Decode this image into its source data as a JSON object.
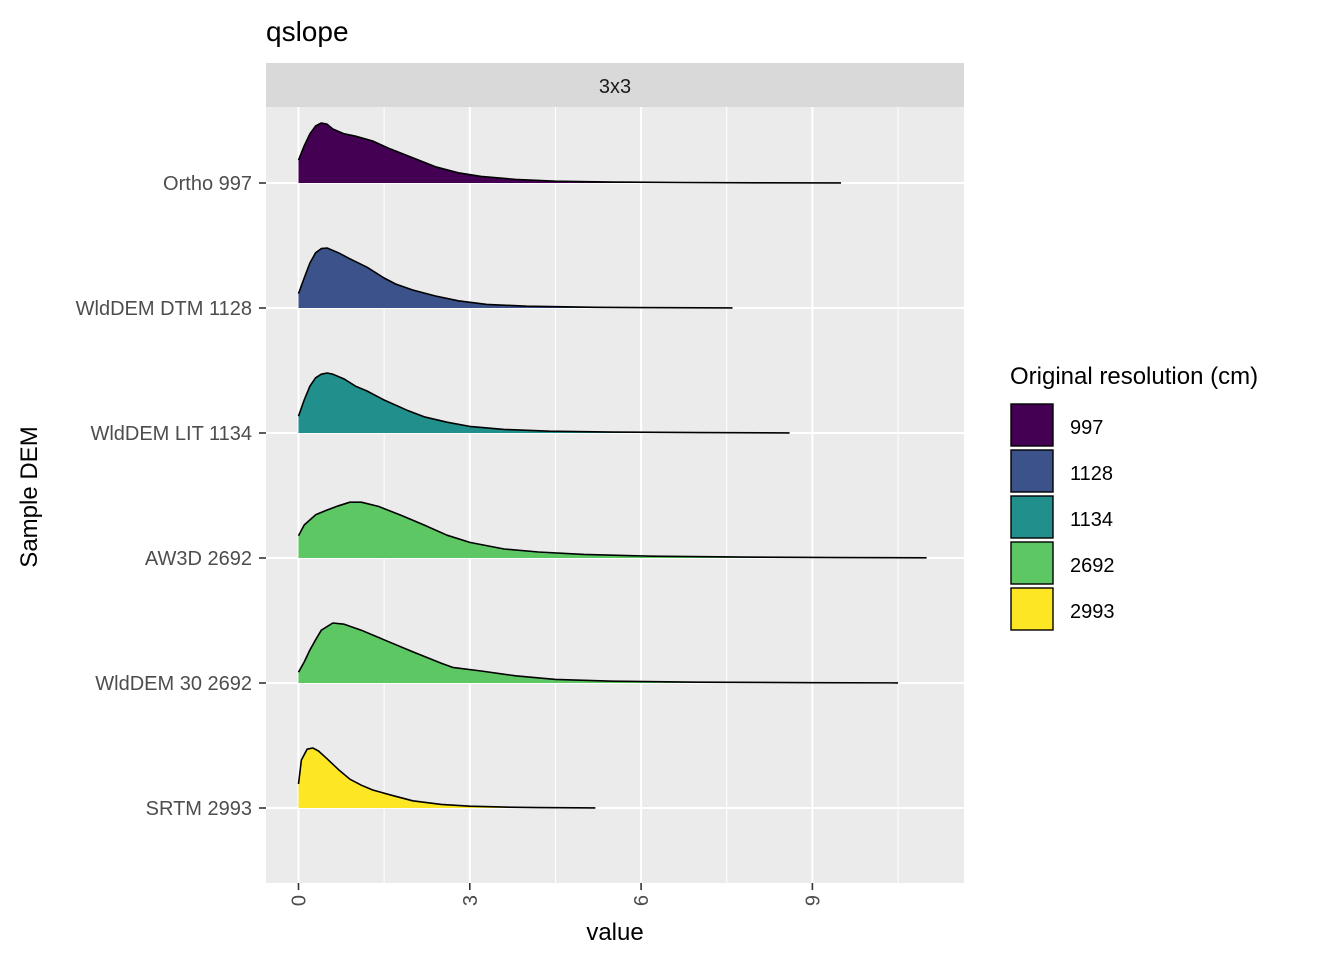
{
  "chart_data": {
    "type": "ridgeline",
    "title": "qslope",
    "facet_label": "3x3",
    "xlabel": "value",
    "ylabel": "Sample DEM",
    "xlim": [
      -0.5,
      11.5
    ],
    "x_ticks": [
      0,
      3,
      6,
      9
    ],
    "x_tick_labels": [
      "0",
      "3",
      "6",
      "9"
    ],
    "grid": true,
    "legend": {
      "title": "Original resolution (cm)",
      "position": "right",
      "items": [
        {
          "label": "997",
          "color": "#440154"
        },
        {
          "label": "1128",
          "color": "#3B528B"
        },
        {
          "label": "1134",
          "color": "#21908C"
        },
        {
          "label": "2692",
          "color": "#5DC863"
        },
        {
          "label": "2993",
          "color": "#FDE725"
        }
      ]
    },
    "series": [
      {
        "name": "Ortho 997",
        "group": "997",
        "color": "#440154",
        "x": [
          0,
          0.1,
          0.2,
          0.3,
          0.4,
          0.5,
          0.6,
          0.8,
          1.0,
          1.3,
          1.6,
          2.0,
          2.4,
          2.8,
          3.2,
          3.8,
          4.5,
          5.5,
          6.7,
          8.0,
          9.5
        ],
        "density": [
          0.38,
          0.62,
          0.82,
          0.95,
          1.0,
          0.98,
          0.9,
          0.82,
          0.78,
          0.7,
          0.57,
          0.42,
          0.27,
          0.17,
          0.11,
          0.06,
          0.03,
          0.015,
          0.008,
          0.004,
          0.002
        ]
      },
      {
        "name": "WldDEM DTM 1128",
        "group": "1128",
        "color": "#3B528B",
        "x": [
          0,
          0.1,
          0.2,
          0.3,
          0.4,
          0.5,
          0.7,
          0.9,
          1.2,
          1.5,
          1.7,
          2.0,
          2.4,
          2.8,
          3.3,
          4.0,
          5.2,
          6.5,
          7.6
        ],
        "density": [
          0.24,
          0.5,
          0.75,
          0.92,
          0.99,
          1.0,
          0.92,
          0.82,
          0.68,
          0.5,
          0.4,
          0.3,
          0.2,
          0.12,
          0.06,
          0.03,
          0.012,
          0.005,
          0.002
        ]
      },
      {
        "name": "WldDEM LIT 1134",
        "group": "1134",
        "color": "#21908C",
        "x": [
          0,
          0.1,
          0.2,
          0.3,
          0.4,
          0.5,
          0.6,
          0.8,
          1.0,
          1.2,
          1.5,
          1.9,
          2.2,
          2.6,
          3.0,
          3.6,
          4.4,
          5.5,
          7.0,
          8.6
        ],
        "density": [
          0.28,
          0.55,
          0.78,
          0.92,
          0.98,
          1.0,
          0.98,
          0.9,
          0.78,
          0.7,
          0.55,
          0.38,
          0.27,
          0.18,
          0.11,
          0.06,
          0.03,
          0.015,
          0.006,
          0.002
        ]
      },
      {
        "name": "AW3D 2692",
        "group": "2692",
        "color": "#5DC863",
        "x": [
          0,
          0.1,
          0.3,
          0.5,
          0.7,
          0.9,
          1.1,
          1.4,
          1.8,
          2.2,
          2.6,
          3.0,
          3.6,
          4.2,
          5.0,
          6.2,
          7.8,
          9.5,
          11.0
        ],
        "density": [
          0.37,
          0.55,
          0.72,
          0.8,
          0.87,
          0.93,
          0.93,
          0.86,
          0.71,
          0.55,
          0.38,
          0.26,
          0.15,
          0.1,
          0.06,
          0.03,
          0.015,
          0.007,
          0.003
        ]
      },
      {
        "name": "WldDEM 30 2692",
        "group": "2692",
        "color": "#5DC863",
        "x": [
          0,
          0.1,
          0.2,
          0.3,
          0.4,
          0.6,
          0.8,
          1.1,
          1.5,
          2.0,
          2.5,
          2.7,
          3.2,
          3.8,
          4.5,
          5.5,
          7.0,
          9.0,
          10.5
        ],
        "density": [
          0.18,
          0.35,
          0.55,
          0.72,
          0.88,
          1.0,
          0.98,
          0.88,
          0.72,
          0.52,
          0.33,
          0.26,
          0.2,
          0.12,
          0.06,
          0.03,
          0.013,
          0.005,
          0.002
        ]
      },
      {
        "name": "SRTM 2993",
        "group": "2993",
        "color": "#FDE725",
        "x": [
          0,
          0.05,
          0.15,
          0.25,
          0.35,
          0.5,
          0.7,
          0.9,
          1.1,
          1.3,
          1.6,
          2.0,
          2.5,
          3.0,
          3.6,
          4.2,
          5.2
        ],
        "density": [
          0.4,
          0.8,
          0.98,
          1.0,
          0.95,
          0.82,
          0.64,
          0.48,
          0.38,
          0.3,
          0.22,
          0.12,
          0.06,
          0.03,
          0.015,
          0.006,
          0.002
        ]
      }
    ]
  }
}
